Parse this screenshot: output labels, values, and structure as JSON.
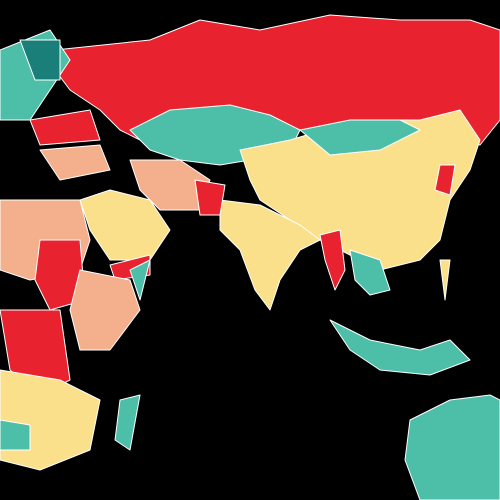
{
  "map": {
    "colors": [
      "#e8222e",
      "#4dbfa8",
      "#fbe08c",
      "#f4b08c",
      "#1a7f78"
    ]
  }
}
